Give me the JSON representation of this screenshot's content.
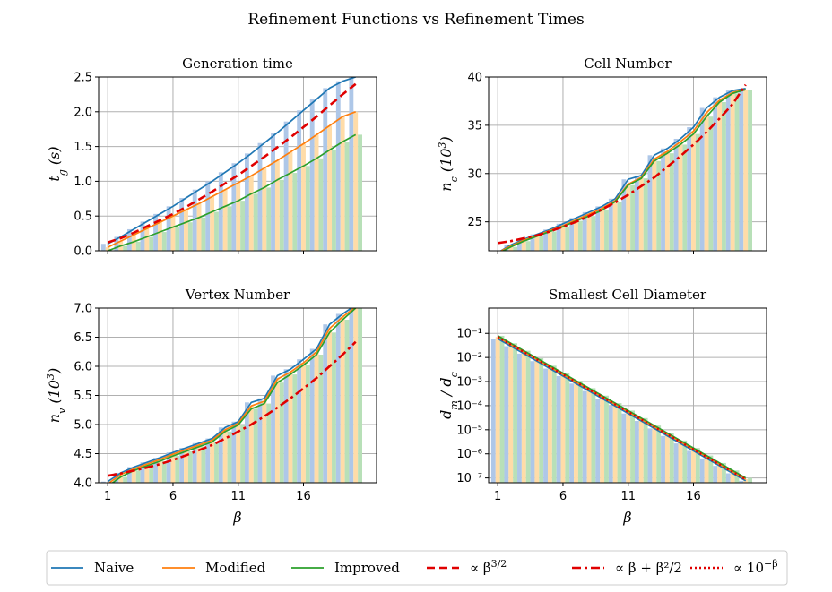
{
  "figure": {
    "suptitle": "Refinement Functions vs Refinement Times"
  },
  "legend": {
    "placement": "bottom-center",
    "entries": [
      {
        "label": "Naive",
        "color": "#1f77b4",
        "style": "solid"
      },
      {
        "label": "Modified",
        "color": "#ff7f0e",
        "style": "solid"
      },
      {
        "label": "Improved",
        "color": "#2ca02c",
        "style": "solid"
      },
      {
        "label": "∝ β^{3/2}",
        "color": "#e00000",
        "style": "dashed"
      },
      {
        "label": "∝ β + β²/2",
        "color": "#e00000",
        "style": "dashdot"
      },
      {
        "label": "∝ 10^{−β}",
        "color": "#e00000",
        "style": "dotted"
      }
    ]
  },
  "chart_data": [
    {
      "type": "line",
      "title": "Generation time",
      "xlabel": "",
      "ylabel": "t_g (s)",
      "xlim": [
        0.3,
        21.6
      ],
      "ylim": [
        0,
        2.5
      ],
      "xticks": [],
      "yticks": [
        0.0,
        0.5,
        1.0,
        1.5,
        2.0,
        2.5
      ],
      "ytick_labels": [
        "0.0",
        "0.5",
        "1.0",
        "1.5",
        "2.0",
        "2.5"
      ],
      "grid": true,
      "x": [
        1,
        2,
        3,
        4,
        5,
        6,
        7,
        8,
        9,
        10,
        11,
        12,
        13,
        14,
        15,
        16,
        17,
        18,
        19,
        20
      ],
      "series": [
        {
          "name": "Naive",
          "color": "#1f77b4",
          "style": "solid",
          "values": [
            0.1,
            0.2,
            0.31,
            0.42,
            0.53,
            0.64,
            0.76,
            0.88,
            1.0,
            1.13,
            1.26,
            1.4,
            1.55,
            1.7,
            1.86,
            2.02,
            2.18,
            2.34,
            2.44,
            2.5
          ]
        },
        {
          "name": "Modified",
          "color": "#ff7f0e",
          "style": "solid",
          "values": [
            0.05,
            0.14,
            0.23,
            0.32,
            0.41,
            0.5,
            0.59,
            0.68,
            0.78,
            0.88,
            0.98,
            1.08,
            1.19,
            1.3,
            1.42,
            1.54,
            1.67,
            1.8,
            1.93,
            2.0
          ]
        },
        {
          "name": "Improved",
          "color": "#2ca02c",
          "style": "solid",
          "values": [
            0.0,
            0.07,
            0.13,
            0.2,
            0.27,
            0.34,
            0.41,
            0.48,
            0.56,
            0.64,
            0.72,
            0.82,
            0.91,
            1.02,
            1.12,
            1.22,
            1.33,
            1.45,
            1.57,
            1.67
          ]
        },
        {
          "name": "∝ β^{3/2}",
          "color": "#e00000",
          "style": "dashed",
          "values": [
            0.12,
            0.18,
            0.26,
            0.35,
            0.44,
            0.53,
            0.63,
            0.74,
            0.85,
            0.97,
            1.09,
            1.22,
            1.35,
            1.49,
            1.63,
            1.78,
            1.93,
            2.09,
            2.25,
            2.4
          ]
        }
      ],
      "bars": {
        "colors": [
          "#aec7e8",
          "#ffdca8",
          "#b8e0b8"
        ],
        "values": [
          [
            0.1,
            0.2,
            0.31,
            0.42,
            0.53,
            0.64,
            0.76,
            0.88,
            1.0,
            1.13,
            1.26,
            1.4,
            1.55,
            1.7,
            1.86,
            2.02,
            2.18,
            2.34,
            2.44,
            2.5
          ],
          [
            0.05,
            0.14,
            0.23,
            0.32,
            0.41,
            0.5,
            0.59,
            0.68,
            0.78,
            0.88,
            0.98,
            1.08,
            1.19,
            1.3,
            1.42,
            1.54,
            1.67,
            1.8,
            1.93,
            2.0
          ],
          [
            0.0,
            0.07,
            0.13,
            0.2,
            0.27,
            0.34,
            0.41,
            0.48,
            0.56,
            0.64,
            0.72,
            0.82,
            0.91,
            1.02,
            1.12,
            1.22,
            1.33,
            1.45,
            1.57,
            1.67
          ]
        ]
      }
    },
    {
      "type": "line",
      "title": "Cell Number",
      "xlabel": "",
      "ylabel": "n_c (10^3)",
      "xlim": [
        0.3,
        21.6
      ],
      "ylim": [
        22,
        40
      ],
      "xticks": [],
      "yticks": [
        25,
        30,
        35,
        40
      ],
      "ytick_labels": [
        "25",
        "30",
        "35",
        "40"
      ],
      "grid": true,
      "x": [
        1,
        2,
        3,
        4,
        5,
        6,
        7,
        8,
        9,
        10,
        11,
        12,
        13,
        14,
        15,
        16,
        17,
        18,
        19,
        20
      ],
      "series": [
        {
          "name": "Naive",
          "color": "#1f77b4",
          "style": "solid",
          "values": [
            21.8,
            22.6,
            23.2,
            23.7,
            24.2,
            24.8,
            25.4,
            26.0,
            26.6,
            27.4,
            29.4,
            29.8,
            31.9,
            32.6,
            33.6,
            34.8,
            36.8,
            37.9,
            38.6,
            38.8
          ]
        },
        {
          "name": "Modified",
          "color": "#ff7f0e",
          "style": "solid",
          "values": [
            21.8,
            22.5,
            23.1,
            23.6,
            24.1,
            24.6,
            25.2,
            25.8,
            26.4,
            27.2,
            28.9,
            29.6,
            31.5,
            32.3,
            33.3,
            34.4,
            36.3,
            37.6,
            38.4,
            38.7
          ]
        },
        {
          "name": "Improved",
          "color": "#2ca02c",
          "style": "solid",
          "values": [
            21.7,
            22.4,
            23.0,
            23.5,
            24.0,
            24.5,
            25.1,
            25.6,
            26.2,
            27.1,
            28.8,
            29.5,
            31.3,
            32.1,
            33.0,
            34.1,
            35.9,
            37.4,
            38.3,
            38.7
          ]
        },
        {
          "name": "∝ β + β²/2",
          "color": "#e00000",
          "style": "dashdot",
          "values": [
            22.8,
            23.0,
            23.3,
            23.6,
            24.0,
            24.5,
            25.0,
            25.6,
            26.3,
            27.0,
            27.8,
            28.7,
            29.6,
            30.7,
            31.8,
            33.0,
            34.3,
            35.7,
            37.2,
            39.2
          ]
        }
      ],
      "bars": {
        "colors": [
          "#aec7e8",
          "#ffdca8",
          "#b8e0b8"
        ],
        "values": [
          [
            21.8,
            22.6,
            23.2,
            23.7,
            24.2,
            24.8,
            25.4,
            26.0,
            26.6,
            27.4,
            29.4,
            29.8,
            31.9,
            32.6,
            33.6,
            34.8,
            36.8,
            37.9,
            38.6,
            38.8
          ],
          [
            21.8,
            22.5,
            23.1,
            23.6,
            24.1,
            24.6,
            25.2,
            25.8,
            26.4,
            27.2,
            28.9,
            29.6,
            31.5,
            32.3,
            33.3,
            34.4,
            36.3,
            37.6,
            38.4,
            38.7
          ],
          [
            21.7,
            22.4,
            23.0,
            23.5,
            24.0,
            24.5,
            25.1,
            25.6,
            26.2,
            27.1,
            28.8,
            29.5,
            31.3,
            32.1,
            33.0,
            34.1,
            35.9,
            37.4,
            38.3,
            38.7
          ]
        ]
      }
    },
    {
      "type": "line",
      "title": "Vertex Number",
      "xlabel": "β",
      "ylabel": "n_v (10^3)",
      "xlim": [
        0.3,
        21.6
      ],
      "ylim": [
        4.0,
        7.0
      ],
      "xticks": [
        1,
        6,
        11,
        16
      ],
      "xtick_labels": [
        "1",
        "6",
        "11",
        "16"
      ],
      "yticks": [
        4.0,
        4.5,
        5.0,
        5.5,
        6.0,
        6.5,
        7.0
      ],
      "ytick_labels": [
        "4.0",
        "4.5",
        "5.0",
        "5.5",
        "6.0",
        "6.5",
        "7.0"
      ],
      "grid": true,
      "x": [
        1,
        2,
        3,
        4,
        5,
        6,
        7,
        8,
        9,
        10,
        11,
        12,
        13,
        14,
        15,
        16,
        17,
        18,
        19,
        20
      ],
      "series": [
        {
          "name": "Naive",
          "color": "#1f77b4",
          "style": "solid",
          "values": [
            4.02,
            4.17,
            4.27,
            4.35,
            4.43,
            4.52,
            4.6,
            4.68,
            4.76,
            4.95,
            5.05,
            5.38,
            5.45,
            5.84,
            5.95,
            6.12,
            6.3,
            6.72,
            6.9,
            7.05
          ]
        },
        {
          "name": "Modified",
          "color": "#ff7f0e",
          "style": "solid",
          "values": [
            3.98,
            4.14,
            4.24,
            4.32,
            4.4,
            4.49,
            4.57,
            4.65,
            4.73,
            4.91,
            5.02,
            5.32,
            5.4,
            5.78,
            5.9,
            6.06,
            6.25,
            6.65,
            6.85,
            7.02
          ]
        },
        {
          "name": "Improved",
          "color": "#2ca02c",
          "style": "solid",
          "values": [
            3.94,
            4.1,
            4.21,
            4.29,
            4.37,
            4.46,
            4.54,
            4.62,
            4.7,
            4.88,
            4.99,
            5.27,
            5.36,
            5.72,
            5.86,
            6.02,
            6.2,
            6.58,
            6.8,
            7.0
          ]
        },
        {
          "name": "∝ β + β²/2",
          "color": "#e00000",
          "style": "dashdot",
          "values": [
            4.12,
            4.16,
            4.21,
            4.26,
            4.32,
            4.39,
            4.47,
            4.56,
            4.65,
            4.76,
            4.88,
            5.0,
            5.14,
            5.29,
            5.45,
            5.62,
            5.8,
            6.0,
            6.2,
            6.42
          ]
        }
      ],
      "bars": {
        "colors": [
          "#aec7e8",
          "#ffdca8",
          "#b8e0b8"
        ],
        "values": [
          [
            4.02,
            4.17,
            4.27,
            4.35,
            4.43,
            4.52,
            4.6,
            4.68,
            4.76,
            4.95,
            5.05,
            5.38,
            5.45,
            5.84,
            5.95,
            6.12,
            6.3,
            6.72,
            6.9,
            7.05
          ],
          [
            3.98,
            4.14,
            4.24,
            4.32,
            4.4,
            4.49,
            4.57,
            4.65,
            4.73,
            4.91,
            5.02,
            5.32,
            5.4,
            5.78,
            5.9,
            6.06,
            6.25,
            6.65,
            6.85,
            7.02
          ],
          [
            3.94,
            4.1,
            4.21,
            4.29,
            4.37,
            4.46,
            4.54,
            4.62,
            4.7,
            4.88,
            4.99,
            5.27,
            5.36,
            5.72,
            5.86,
            6.02,
            6.2,
            6.58,
            6.8,
            7.0
          ]
        ]
      }
    },
    {
      "type": "line",
      "title": "Smallest Cell Diameter",
      "xlabel": "β",
      "ylabel": "d_m / d_c",
      "yscale": "log",
      "xlim": [
        0.3,
        21.6
      ],
      "ylim_log10": [
        -7.2,
        0.05
      ],
      "xticks": [
        1,
        6,
        11,
        16
      ],
      "xtick_labels": [
        "1",
        "6",
        "11",
        "16"
      ],
      "yticks_log10": [
        -1,
        -2,
        -3,
        -4,
        -5,
        -6,
        -7
      ],
      "ytick_labels": [
        "10⁻¹",
        "10⁻²",
        "10⁻³",
        "10⁻⁴",
        "10⁻⁵",
        "10⁻⁶",
        "10⁻⁷"
      ],
      "grid": true,
      "x": [
        1,
        20
      ],
      "series": [
        {
          "name": "Naive",
          "color": "#1f77b4",
          "style": "solid",
          "log10_values": [
            -1.22,
            -7.12
          ]
        },
        {
          "name": "Modified",
          "color": "#ff7f0e",
          "style": "solid",
          "log10_values": [
            -1.15,
            -7.05
          ]
        },
        {
          "name": "Improved",
          "color": "#2ca02c",
          "style": "solid",
          "log10_values": [
            -1.1,
            -7.0
          ]
        },
        {
          "name": "∝ 10^{−β}",
          "color": "#e00000",
          "style": "dotted",
          "log10_values": [
            -1.15,
            -7.06
          ]
        }
      ],
      "bars": {
        "colors": [
          "#aec7e8",
          "#ffdca8",
          "#b8e0b8"
        ],
        "log_linear": true,
        "log10_start": [
          -1.22,
          -1.15,
          -1.1
        ],
        "log10_end": [
          -7.12,
          -7.05,
          -7.0
        ]
      }
    }
  ]
}
